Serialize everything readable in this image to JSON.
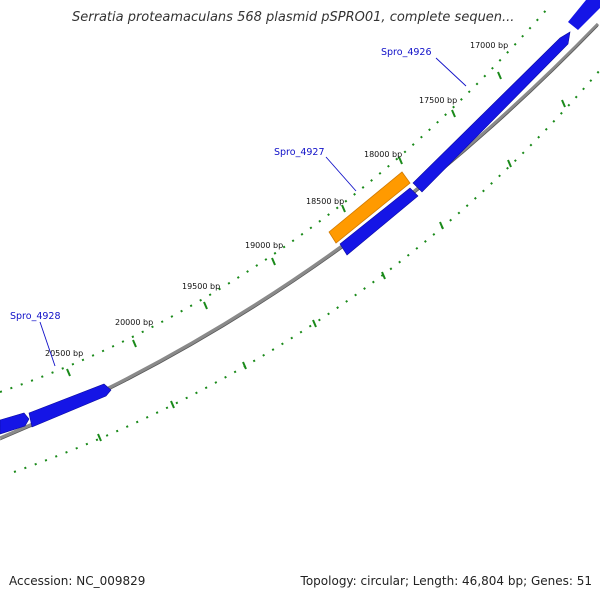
{
  "title": "Serratia proteamaculans 568 plasmid pSPRO01, complete sequen...",
  "footer": {
    "accession": "Accession: NC_009829",
    "summary": "Topology: circular; Length: 46,804 bp; Genes: 51"
  },
  "colors": {
    "gene": "#1515e6",
    "gene_highlight": "#ff9a00",
    "backbone": "#777777",
    "tick": "#1a8a1a",
    "gene_label": "#1010c8"
  },
  "ticks": [
    {
      "label": "17000 bp"
    },
    {
      "label": "17500 bp"
    },
    {
      "label": "18000 bp"
    },
    {
      "label": "18500 bp"
    },
    {
      "label": "19000 bp"
    },
    {
      "label": "19500 bp"
    },
    {
      "label": "20000 bp"
    },
    {
      "label": "20500 bp"
    }
  ],
  "genes": [
    {
      "label": "Spro_4926"
    },
    {
      "label": "Spro_4927"
    },
    {
      "label": "Spro_4928"
    }
  ]
}
